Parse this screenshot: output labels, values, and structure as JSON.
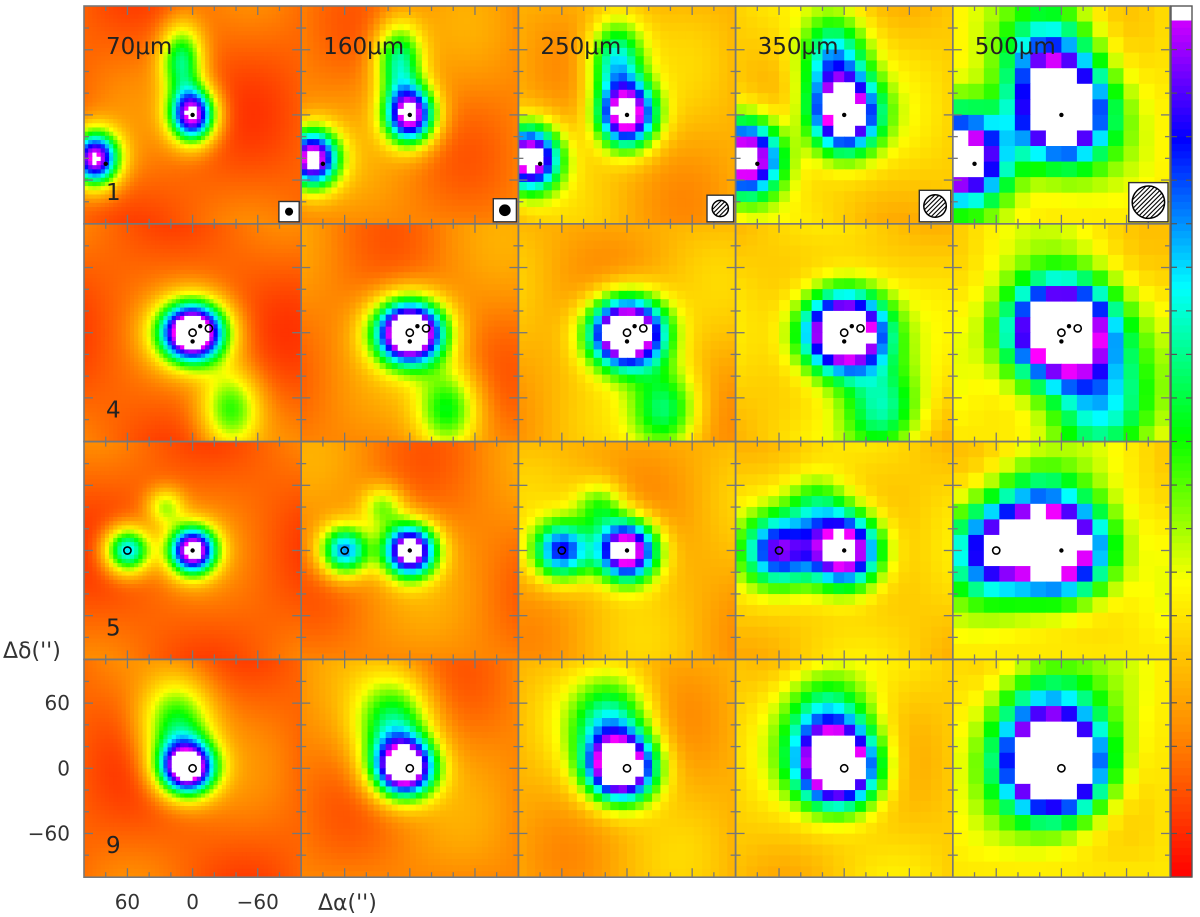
{
  "chart_data": {
    "type": "heatmap",
    "layout": {
      "rows": 4,
      "columns": 5,
      "shared_colorbar": "right"
    },
    "wavelength_labels": [
      "70μm",
      "160μm",
      "250μm",
      "350μm",
      "500μm"
    ],
    "row_labels": [
      "1",
      "4",
      "5",
      "9"
    ],
    "xlabel": "Δα('')",
    "ylabel": "Δδ('')",
    "x_ticks": [
      60,
      0,
      -60
    ],
    "x_tick_labels": [
      "60",
      "0",
      "−60"
    ],
    "y_ticks": [
      60,
      0,
      -60
    ],
    "y_tick_labels": [
      "60",
      "0",
      "−60"
    ],
    "xlim": [
      100,
      -100
    ],
    "ylim": [
      -100,
      100
    ],
    "colormap": [
      "#ff0000",
      "#ff8c00",
      "#ffff00",
      "#00ff00",
      "#00ffff",
      "#0000ff",
      "#ff00ff",
      "#ffffff"
    ],
    "beam_sizes_arcsec": [
      9,
      13,
      18,
      25,
      36
    ],
    "sources": [
      {
        "row": "1",
        "center_x": 0,
        "center_y": 0,
        "blobs": [
          {
            "x": 0,
            "y": 0,
            "sx": 13,
            "sy": 16,
            "amp": 0.9
          },
          {
            "x": 90,
            "y": -40,
            "sx": 14,
            "sy": 16,
            "amp": 0.9
          },
          {
            "x": 10,
            "y": 50,
            "sx": 12,
            "sy": 22,
            "amp": 0.45
          }
        ],
        "markers": [
          {
            "x": 0,
            "y": 0,
            "kind": "filled"
          },
          {
            "x": 80,
            "y": -45,
            "kind": "filled"
          }
        ]
      },
      {
        "row": "4",
        "center_x": 0,
        "center_y": 0,
        "blobs": [
          {
            "x": 0,
            "y": 0,
            "sx": 20,
            "sy": 18,
            "amp": 1.15
          },
          {
            "x": -35,
            "y": -70,
            "sx": 18,
            "sy": 25,
            "amp": 0.35
          }
        ],
        "markers": [
          {
            "x": 0,
            "y": 0,
            "kind": "open"
          },
          {
            "x": -15,
            "y": 4,
            "kind": "open"
          },
          {
            "x": -7,
            "y": 6,
            "kind": "filled"
          },
          {
            "x": 0,
            "y": -8,
            "kind": "filled"
          }
        ]
      },
      {
        "row": "5",
        "center_x": 0,
        "center_y": 0,
        "blobs": [
          {
            "x": 0,
            "y": 0,
            "sx": 14,
            "sy": 14,
            "amp": 0.95
          },
          {
            "x": 60,
            "y": 0,
            "sx": 13,
            "sy": 13,
            "amp": 0.6
          },
          {
            "x": 25,
            "y": 40,
            "sx": 10,
            "sy": 10,
            "amp": 0.25
          }
        ],
        "markers": [
          {
            "x": 0,
            "y": 0,
            "kind": "filled"
          },
          {
            "x": 60,
            "y": 0,
            "kind": "open"
          }
        ]
      },
      {
        "row": "9",
        "center_x": 0,
        "center_y": 0,
        "blobs": [
          {
            "x": 5,
            "y": 0,
            "sx": 17,
            "sy": 16,
            "amp": 1.0
          },
          {
            "x": 15,
            "y": 40,
            "sx": 22,
            "sy": 28,
            "amp": 0.4
          }
        ],
        "markers": [
          {
            "x": 0,
            "y": 0,
            "kind": "open"
          }
        ]
      }
    ]
  }
}
